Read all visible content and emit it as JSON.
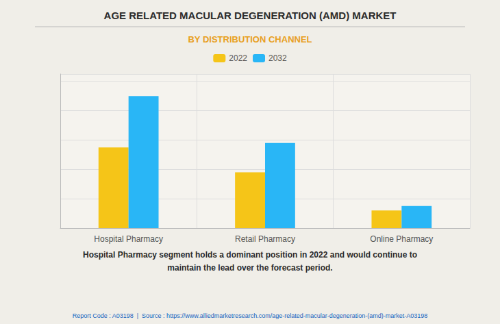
{
  "chart_data": {
    "type": "bar",
    "title": "AGE RELATED MACULAR DEGENERATION (AMD) MARKET",
    "subtitle": "BY DISTRIBUTION CHANNEL",
    "categories": [
      "Hospital Pharmacy",
      "Retail Pharmacy",
      "Online Pharmacy"
    ],
    "series": [
      {
        "name": "2022",
        "values": [
          55,
          38,
          12
        ],
        "color": "#F5C518"
      },
      {
        "name": "2032",
        "values": [
          90,
          58,
          15
        ],
        "color": "#29B6F6"
      }
    ],
    "ylim": [
      0,
      105
    ],
    "yticks": [
      0,
      20,
      40,
      60,
      80,
      100
    ],
    "grid": true,
    "legend": "top",
    "tick_labels": "x",
    "annotations": [
      "Hospital Pharmacy segment holds a dominant position in 2022 and would continue to\nmaintain the lead over the forecast period.",
      "Report Code : A03198  |  Source : https://www.alliedmarketresearch.com/age-related-macular-degeneration-(amd)-market-A03198"
    ]
  }
}
